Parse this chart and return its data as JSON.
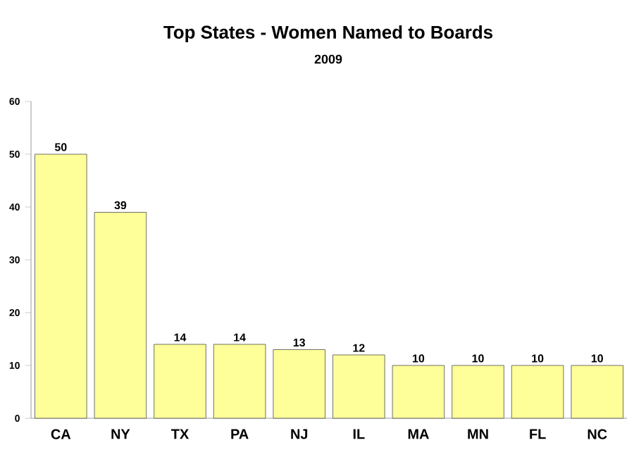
{
  "chart_data": {
    "type": "bar",
    "title": "Top States - Women Named to Boards",
    "subtitle": "2009",
    "categories": [
      "CA",
      "NY",
      "TX",
      "PA",
      "NJ",
      "IL",
      "MA",
      "MN",
      "FL",
      "NC"
    ],
    "values": [
      50,
      39,
      14,
      14,
      13,
      12,
      10,
      10,
      10,
      10
    ],
    "color": "#ffff99",
    "ylim": [
      0,
      60
    ],
    "yticks": [
      0,
      10,
      20,
      30,
      40,
      50,
      60
    ],
    "grid": false,
    "data_labels": true
  }
}
